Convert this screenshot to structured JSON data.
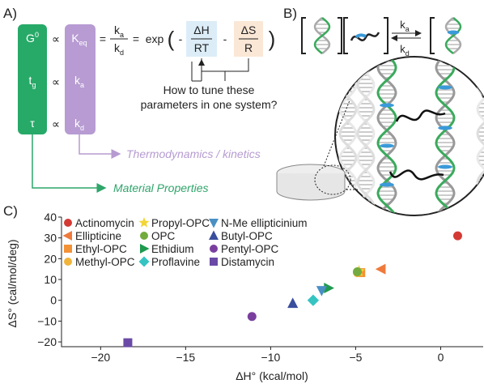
{
  "panel_a": {
    "label": "A)",
    "properties": [
      {
        "base": "G",
        "sup": "0"
      },
      {
        "base": "t",
        "sub": "g"
      },
      {
        "base": "τ"
      }
    ],
    "proportional": "∝",
    "rates": [
      {
        "base": "K",
        "sub": "eq"
      },
      {
        "base": "k",
        "sub": "a"
      },
      {
        "base": "k",
        "sub": "d"
      }
    ],
    "equals": "=",
    "exp": "exp",
    "open_paren": "(",
    "minus": "-",
    "close_paren": ")",
    "enthalpy": {
      "num": "ΔH",
      "den": "RT"
    },
    "entropy": {
      "num": "ΔS",
      "den": "R"
    },
    "question": [
      "How to tune these",
      "parameters in one system?"
    ],
    "thermo_label": "Thermodynamics / kinetics",
    "material_label": "Material Properties"
  },
  "panel_b": {
    "label": "B)",
    "forward": {
      "base": "k",
      "sub": "a"
    },
    "reverse": {
      "base": "k",
      "sub": "d"
    }
  },
  "chart_data": {
    "type": "scatter",
    "panel_label": "C)",
    "x_label": "ΔH° (kcal/mol)",
    "y_label": "ΔS° (cal/mol/deg)",
    "xlim": [
      -22.3,
      2.5
    ],
    "ylim": [
      -22.3,
      40
    ],
    "xticks": [
      {
        "value": -20,
        "label": "−20"
      },
      {
        "value": -15,
        "label": "−15"
      },
      {
        "value": -10,
        "label": "−10"
      },
      {
        "value": -5,
        "label": "−5"
      },
      0
    ],
    "yticks": [
      {
        "value": -20,
        "label": "−20"
      },
      {
        "value": -10,
        "label": "−10"
      },
      0,
      10,
      20,
      30,
      40
    ],
    "series": [
      {
        "name": "Actinomycin",
        "color": "#d43a34",
        "marker": "circle",
        "x": [
          1.0
        ],
        "values": [
          31
        ]
      },
      {
        "name": "Ellipticine",
        "color": "#ef7a3c",
        "marker": "triangle-left",
        "x": [
          -3.5
        ],
        "values": [
          15
        ]
      },
      {
        "name": "Ethyl-OPC",
        "color": "#f39237",
        "marker": "square",
        "x": [
          -4.7
        ],
        "values": [
          13.3
        ]
      },
      {
        "name": "Methyl-OPC",
        "color": "#f1b43b",
        "marker": "circle",
        "x": [
          -4.9
        ],
        "values": [
          13.3
        ]
      },
      {
        "name": "Propyl-OPC",
        "color": "#f2d536",
        "marker": "star",
        "x": [
          -4.8
        ],
        "values": [
          14
        ]
      },
      {
        "name": "OPC",
        "color": "#73ab3e",
        "marker": "circle",
        "x": [
          -4.9
        ],
        "values": [
          13.7
        ]
      },
      {
        "name": "Ethidium",
        "color": "#1f9a4e",
        "marker": "triangle-right",
        "x": [
          -6.6
        ],
        "values": [
          5.9
        ]
      },
      {
        "name": "Proflavine",
        "color": "#35c4c2",
        "marker": "diamond",
        "x": [
          -7.5
        ],
        "values": [
          0
        ]
      },
      {
        "name": "N-Me ellipticinium",
        "color": "#4a8fc4",
        "marker": "triangle-down",
        "x": [
          -7.0
        ],
        "values": [
          4.7
        ]
      },
      {
        "name": "Butyl-OPC",
        "color": "#3a4e9e",
        "marker": "triangle-up",
        "x": [
          -8.7
        ],
        "values": [
          -1.5
        ]
      },
      {
        "name": "Pentyl-OPC",
        "color": "#7a3f9e",
        "marker": "circle",
        "x": [
          -11.1
        ],
        "values": [
          -7.8
        ]
      },
      {
        "name": "Distamycin",
        "color": "#6a4aa6",
        "marker": "square",
        "x": [
          -18.4
        ],
        "values": [
          -20.4
        ]
      }
    ]
  }
}
